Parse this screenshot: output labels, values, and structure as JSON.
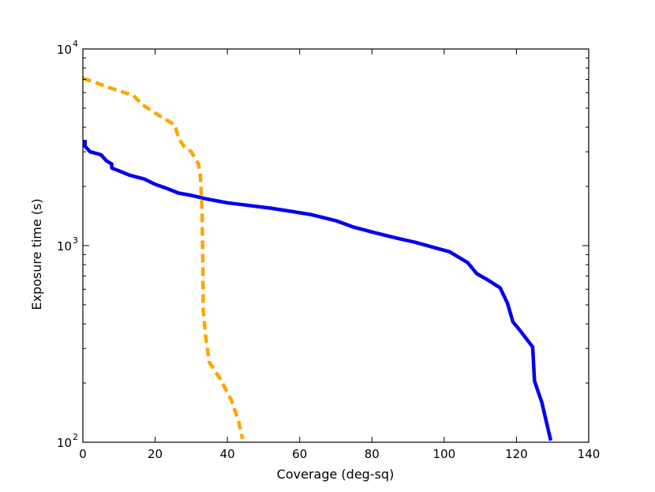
{
  "chart_data": {
    "type": "line",
    "xlabel": "Coverage (deg-sq)",
    "ylabel": "Exposure time (s)",
    "xlim": [
      0,
      140
    ],
    "ylim": [
      100,
      10000
    ],
    "yscale": "log",
    "grid": false,
    "x_ticks": [
      "0",
      "20",
      "40",
      "60",
      "80",
      "100",
      "120",
      "140"
    ],
    "y_ticks": [
      {
        "base": "10",
        "exp": "2"
      },
      {
        "base": "10",
        "exp": "3"
      },
      {
        "base": "10",
        "exp": "4"
      }
    ],
    "series": [
      {
        "color": "#0000ee",
        "style": "solid",
        "points": [
          [
            0.6,
            3450
          ],
          [
            0.6,
            3200
          ],
          [
            2,
            3000
          ],
          [
            5,
            2900
          ],
          [
            6.5,
            2700
          ],
          [
            8,
            2600
          ],
          [
            8,
            2480
          ],
          [
            10,
            2400
          ],
          [
            13,
            2280
          ],
          [
            17,
            2180
          ],
          [
            20,
            2050
          ],
          [
            23,
            1960
          ],
          [
            26.5,
            1850
          ],
          [
            30,
            1800
          ],
          [
            34,
            1730
          ],
          [
            40,
            1650
          ],
          [
            46,
            1600
          ],
          [
            52,
            1550
          ],
          [
            58,
            1490
          ],
          [
            63,
            1440
          ],
          [
            70,
            1340
          ],
          [
            75,
            1240
          ],
          [
            81,
            1160
          ],
          [
            87,
            1090
          ],
          [
            92,
            1040
          ],
          [
            97,
            980
          ],
          [
            101.5,
            930
          ],
          [
            106.5,
            820
          ],
          [
            109,
            720
          ],
          [
            112,
            670
          ],
          [
            115.5,
            610
          ],
          [
            117.5,
            510
          ],
          [
            119,
            410
          ],
          [
            121,
            370
          ],
          [
            124.5,
            305
          ],
          [
            125,
            205
          ],
          [
            127,
            160
          ],
          [
            129.5,
            102
          ]
        ]
      },
      {
        "color": "#ffa500",
        "style": "dashed",
        "points": [
          [
            0,
            7100
          ],
          [
            3,
            6800
          ],
          [
            8,
            6300
          ],
          [
            14,
            5800
          ],
          [
            16.5,
            5200
          ],
          [
            21,
            4600
          ],
          [
            25.5,
            4100
          ],
          [
            26.5,
            3500
          ],
          [
            28,
            3200
          ],
          [
            30,
            3000
          ],
          [
            32,
            2600
          ],
          [
            32.5,
            2300
          ],
          [
            32.8,
            1800
          ],
          [
            33,
            1500
          ],
          [
            33.2,
            800
          ],
          [
            33.3,
            470
          ],
          [
            34,
            340
          ],
          [
            35,
            255
          ],
          [
            38,
            210
          ],
          [
            41,
            165
          ],
          [
            43,
            130
          ],
          [
            44.2,
            104
          ]
        ]
      }
    ]
  }
}
